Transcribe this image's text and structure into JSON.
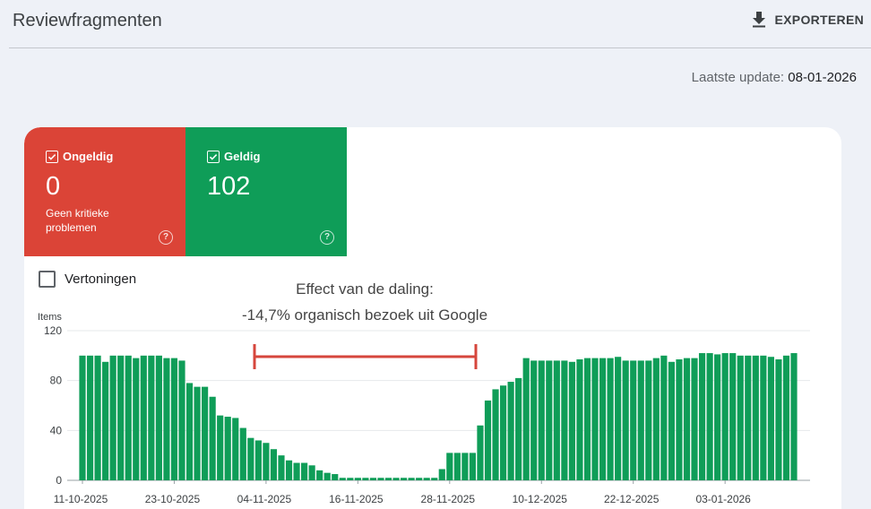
{
  "header": {
    "title": "Reviewfragmenten",
    "export_label": "EXPORTEREN",
    "export_icon": "download-icon"
  },
  "last_update": {
    "label": "Laatste update:",
    "value": "08-01-2026"
  },
  "tiles": {
    "invalid": {
      "label": "Ongeldig",
      "count": "0",
      "sub": "Geen kritieke problemen",
      "color": "#db4437"
    },
    "valid": {
      "label": "Geldig",
      "count": "102",
      "sub": "",
      "color": "#0f9d58"
    }
  },
  "impressions_label": "Vertoningen",
  "annotation": {
    "line1": "Effect van de daling:",
    "line2": "-14,7% organisch bezoek uit Google",
    "marker_color": "#d6463c"
  },
  "chart_data": {
    "type": "bar",
    "ylabel": "Items",
    "ylim": [
      0,
      120
    ],
    "yticks": [
      0,
      40,
      80,
      120
    ],
    "xtick_labels": [
      "11-10-2025",
      "23-10-2025",
      "04-11-2025",
      "16-11-2025",
      "28-11-2025",
      "10-12-2025",
      "22-12-2025",
      "03-01-2026"
    ],
    "xtick_every": 12,
    "bar_color": "#0f9d58",
    "values": [
      100,
      100,
      100,
      95,
      100,
      100,
      100,
      98,
      100,
      100,
      100,
      98,
      98,
      96,
      78,
      75,
      75,
      67,
      52,
      51,
      50,
      42,
      34,
      32,
      30,
      25,
      20,
      16,
      14,
      14,
      12,
      8,
      6,
      5,
      2,
      2,
      2,
      2,
      2,
      2,
      2,
      2,
      2,
      2,
      2,
      2,
      2,
      9,
      22,
      22,
      22,
      22,
      44,
      64,
      73,
      76,
      79,
      82,
      98,
      96,
      96,
      96,
      96,
      96,
      95,
      97,
      98,
      98,
      98,
      98,
      99,
      96,
      96,
      96,
      96,
      98,
      100,
      95,
      97,
      98,
      98,
      102,
      102,
      101,
      102,
      102,
      100,
      100,
      100,
      100,
      99,
      97,
      100,
      102
    ]
  }
}
